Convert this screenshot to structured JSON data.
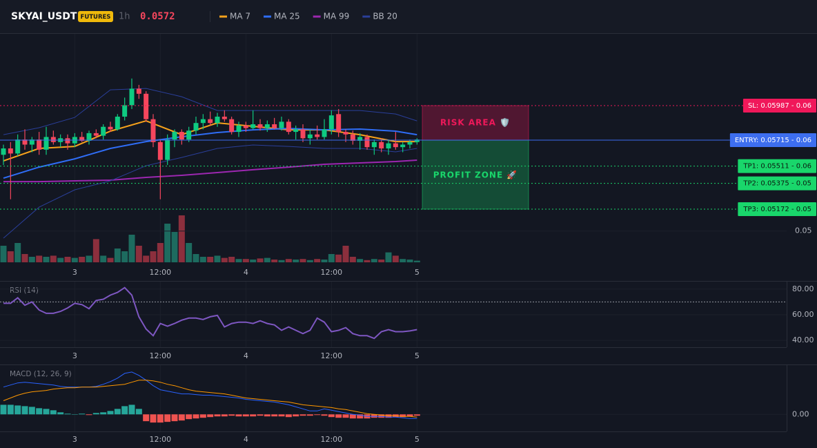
{
  "header": {
    "symbol": "SKYAI_USDT",
    "badge": "FUTURES",
    "interval": "1h",
    "last_price": "0.0572"
  },
  "chart_data": [
    {
      "type": "candlestick",
      "open": [
        0.056,
        0.0565,
        0.0561,
        0.0572,
        0.0568,
        0.0572,
        0.0564,
        0.0574,
        0.057,
        0.0573,
        0.0569,
        0.0574,
        0.0571,
        0.0577,
        0.0575,
        0.0582,
        0.058,
        0.059,
        0.0599,
        0.0612,
        0.0608,
        0.0588,
        0.057,
        0.0556,
        0.0572,
        0.0578,
        0.0572,
        0.0579,
        0.0585,
        0.0588,
        0.0585,
        0.059,
        0.0588,
        0.0578,
        0.0583,
        0.0581,
        0.0584,
        0.0581,
        0.0584,
        0.0581,
        0.0586,
        0.0578,
        0.058,
        0.0573,
        0.0576,
        0.0574,
        0.058,
        0.0592,
        0.0578,
        0.0576,
        0.0571,
        0.0574,
        0.0566,
        0.057,
        0.0565,
        0.0569,
        0.0566,
        0.0568,
        0.057
      ],
      "high": [
        0.0568,
        0.057,
        0.0576,
        0.058,
        0.0574,
        0.0578,
        0.0582,
        0.0579,
        0.0576,
        0.0576,
        0.0577,
        0.0578,
        0.0579,
        0.058,
        0.0584,
        0.0586,
        0.0592,
        0.0605,
        0.062,
        0.0615,
        0.061,
        0.0592,
        0.0572,
        0.0576,
        0.058,
        0.058,
        0.0582,
        0.059,
        0.0592,
        0.0594,
        0.0593,
        0.0595,
        0.059,
        0.0586,
        0.0586,
        0.0595,
        0.0588,
        0.0587,
        0.0589,
        0.059,
        0.0588,
        0.0583,
        0.0584,
        0.058,
        0.0583,
        0.0588,
        0.0595,
        0.0596,
        0.058,
        0.0579,
        0.0577,
        0.0576,
        0.0572,
        0.0573,
        0.0572,
        0.0578,
        0.057,
        0.0572,
        0.0573
      ],
      "low": [
        0.0552,
        0.0525,
        0.0559,
        0.0564,
        0.0562,
        0.056,
        0.056,
        0.0568,
        0.0566,
        0.0564,
        0.0566,
        0.057,
        0.0568,
        0.0573,
        0.0572,
        0.0578,
        0.0579,
        0.0587,
        0.0596,
        0.0604,
        0.0586,
        0.0566,
        0.0525,
        0.0552,
        0.0566,
        0.0568,
        0.057,
        0.0576,
        0.058,
        0.0583,
        0.0582,
        0.0586,
        0.0576,
        0.0574,
        0.0578,
        0.058,
        0.0579,
        0.0578,
        0.058,
        0.0579,
        0.0576,
        0.0572,
        0.057,
        0.0568,
        0.0572,
        0.0572,
        0.0576,
        0.0574,
        0.057,
        0.0568,
        0.0564,
        0.0564,
        0.056,
        0.0562,
        0.056,
        0.0564,
        0.0562,
        0.0565,
        0.0568
      ],
      "close": [
        0.0565,
        0.0561,
        0.0572,
        0.0568,
        0.0572,
        0.0564,
        0.0574,
        0.057,
        0.0573,
        0.0569,
        0.0574,
        0.0571,
        0.0577,
        0.0575,
        0.0582,
        0.058,
        0.059,
        0.0599,
        0.0612,
        0.0608,
        0.0588,
        0.057,
        0.0556,
        0.0572,
        0.0578,
        0.0572,
        0.0579,
        0.0585,
        0.0588,
        0.0585,
        0.059,
        0.0588,
        0.0578,
        0.0583,
        0.0581,
        0.0584,
        0.0581,
        0.0584,
        0.0581,
        0.0586,
        0.0578,
        0.058,
        0.0573,
        0.0576,
        0.0574,
        0.058,
        0.0591,
        0.0578,
        0.0576,
        0.0571,
        0.0574,
        0.0566,
        0.057,
        0.0565,
        0.0569,
        0.0566,
        0.0568,
        0.057,
        0.0572
      ],
      "up_color": "#0ecb81",
      "down_color": "#f6465d",
      "series": [
        {
          "name": "MA 7",
          "color": "#f7a21b",
          "x": [
            0,
            5,
            10,
            15,
            20,
            25,
            30,
            35,
            40,
            45,
            50,
            55,
            58
          ],
          "values": [
            0.05552,
            0.0565,
            0.05666,
            0.05786,
            0.05867,
            0.05758,
            0.05851,
            0.05824,
            0.05796,
            0.05796,
            0.05758,
            0.05704,
            0.05704
          ]
        },
        {
          "name": "MA 25",
          "color": "#2f6df6",
          "x": [
            0,
            5,
            10,
            15,
            20,
            25,
            30,
            35,
            40,
            45,
            50,
            55,
            58
          ],
          "values": [
            0.05416,
            0.05503,
            0.05568,
            0.0565,
            0.05704,
            0.05742,
            0.05775,
            0.05796,
            0.05807,
            0.05796,
            0.05802,
            0.05786,
            0.05758
          ]
        },
        {
          "name": "MA 99",
          "color": "#9c27b0",
          "x": [
            0,
            5,
            10,
            15,
            20,
            25,
            30,
            35,
            40,
            45,
            50,
            55,
            58
          ],
          "values": [
            0.05389,
            0.05389,
            0.05395,
            0.054,
            0.05422,
            0.05438,
            0.0546,
            0.05482,
            0.05503,
            0.05525,
            0.05536,
            0.05547,
            0.05558
          ]
        },
        {
          "name": "BB 20",
          "color": "#2a3f9a",
          "x": [
            0,
            5,
            10,
            15,
            20,
            25,
            30,
            35,
            40,
            45,
            50,
            55,
            58
          ],
          "upper": [
            0.05758,
            0.05813,
            0.05894,
            0.06111,
            0.06122,
            0.06057,
            0.05948,
            0.05948,
            0.05948,
            0.05948,
            0.05948,
            0.05921,
            0.05867
          ],
          "lower": [
            0.04944,
            0.05188,
            0.05324,
            0.05395,
            0.05514,
            0.05579,
            0.0565,
            0.05677,
            0.05666,
            0.0565,
            0.0565,
            0.05623,
            0.0565
          ]
        }
      ],
      "ylim": [
        0.04754,
        0.06557
      ],
      "yticks": [
        0.05
      ],
      "xticks": [
        {
          "value": 10,
          "label": "3"
        },
        {
          "value": 22,
          "label": "12:00"
        },
        {
          "value": 34,
          "label": "4"
        },
        {
          "value": 46,
          "label": "12:00"
        },
        {
          "value": 58,
          "label": "5"
        }
      ],
      "levels": [
        {
          "value": 0.05987,
          "label": "SL: 0.05987 - 0.06",
          "color": "#f0185a",
          "style": "dotted"
        },
        {
          "value": 0.05715,
          "label": "ENTRY: 0.05715 - 0.06",
          "color": "#3d6ef0",
          "style": "solid"
        },
        {
          "value": 0.05511,
          "label": "TP1: 0.05511 - 0.06",
          "color": "#19d66b",
          "style": "dotted"
        },
        {
          "value": 0.05375,
          "label": "TP2: 0.05375 - 0.05",
          "color": "#19d66b",
          "style": "dotted"
        },
        {
          "value": 0.05172,
          "label": "TP3: 0.05172 - 0.05",
          "color": "#19d66b",
          "style": "dotted"
        }
      ],
      "zones": [
        {
          "label": "RISK AREA 🛡️",
          "color": "#f0185a"
        },
        {
          "label": "PROFIT ZONE 🚀",
          "color": "#19d66b"
        }
      ]
    },
    {
      "type": "bar",
      "values": [
        30,
        20,
        35,
        15,
        10,
        12,
        10,
        12,
        8,
        10,
        8,
        10,
        12,
        42,
        12,
        8,
        25,
        20,
        50,
        30,
        12,
        20,
        35,
        70,
        55,
        85,
        35,
        15,
        10,
        10,
        12,
        8,
        10,
        6,
        6,
        5,
        7,
        8,
        5,
        4,
        6,
        5,
        6,
        4,
        6,
        5,
        15,
        14,
        30,
        10,
        6,
        4,
        6,
        5,
        18,
        12,
        6,
        5,
        3
      ],
      "up_color": "#1d6b5f",
      "down_color": "#8c2f3d",
      "ylim": [
        0,
        100
      ]
    },
    {
      "type": "line",
      "title": "RSI (14)",
      "color": "#7e57c2",
      "values": [
        68.9,
        68.9,
        73.2,
        67.4,
        70,
        63.7,
        61.1,
        61.1,
        62.6,
        65.3,
        68.9,
        67.9,
        64.7,
        71.1,
        72.1,
        75.3,
        77.4,
        81.1,
        75.3,
        58.4,
        48.9,
        43.7,
        53.2,
        51.1,
        53.2,
        55.8,
        57.4,
        57.4,
        56.3,
        58.4,
        59.5,
        50.5,
        53.2,
        54.2,
        54.2,
        53.2,
        55.3,
        53.2,
        52.1,
        47.9,
        50.5,
        47.9,
        45.3,
        47.9,
        57.4,
        54.2,
        46.8,
        47.9,
        50,
        45.3,
        43.7,
        43.7,
        41.6,
        46.8,
        48.4,
        46.8,
        46.8,
        47.4,
        48.4
      ],
      "ylim": [
        34.7,
        85.8
      ],
      "yticks": [
        {
          "value": 80,
          "label": "80.00"
        },
        {
          "value": 60,
          "label": "60.00"
        },
        {
          "value": 40,
          "label": "40.00"
        }
      ],
      "overbought": 70
    },
    {
      "type": "macd",
      "title": "MACD (12, 26, 9)",
      "series": [
        {
          "name": "MACD",
          "color": "#2962ff",
          "values": [
            0.0004,
            0.00043,
            0.00046,
            0.00047,
            0.00046,
            0.00045,
            0.00044,
            0.00043,
            0.00041,
            0.0004,
            0.0004,
            0.0004,
            0.0004,
            0.00041,
            0.00044,
            0.00048,
            0.00053,
            0.0006,
            0.00062,
            0.00057,
            0.0005,
            0.00042,
            0.00036,
            0.00034,
            0.00032,
            0.0003,
            0.0003,
            0.00029,
            0.00028,
            0.00028,
            0.00027,
            0.00026,
            0.00025,
            0.00024,
            0.00022,
            0.00021,
            0.0002,
            0.00019,
            0.00018,
            0.00016,
            0.00014,
            0.00011,
            8e-05,
            5e-05,
            5e-05,
            8e-05,
            6e-05,
            4e-05,
            2e-05,
            0,
            -1e-05,
            -3e-05,
            -3e-05,
            -3e-05,
            -4e-05,
            -4e-05,
            -5e-05,
            -6e-05,
            -6e-05
          ]
        },
        {
          "name": "Signal",
          "color": "#ff9800",
          "values": [
            0.0002,
            0.00024,
            0.00028,
            0.00031,
            0.00033,
            0.00034,
            0.00035,
            0.00037,
            0.00038,
            0.00039,
            0.00039,
            0.0004,
            0.0004,
            0.0004,
            0.00041,
            0.00042,
            0.00043,
            0.00044,
            0.00047,
            0.0005,
            0.0005,
            0.00049,
            0.00047,
            0.00044,
            0.00042,
            0.00039,
            0.00036,
            0.00034,
            0.00033,
            0.00032,
            0.00031,
            0.0003,
            0.00028,
            0.00026,
            0.00024,
            0.00023,
            0.00022,
            0.00021,
            0.0002,
            0.00019,
            0.00018,
            0.00016,
            0.00014,
            0.00013,
            0.00012,
            0.00011,
            0.0001,
            8e-05,
            7e-05,
            5e-05,
            3e-05,
            1e-05,
            0,
            -1e-05,
            -2e-05,
            -2e-05,
            -3e-05,
            -3e-05,
            -4e-05
          ]
        }
      ],
      "histogram": [
        0.00014,
        0.00014,
        0.00013,
        0.00012,
        0.00011,
        9e-05,
        8e-05,
        6e-05,
        3e-05,
        1e-05,
        0,
        1e-05,
        -1e-05,
        2e-05,
        3e-05,
        5e-05,
        8e-05,
        0.00012,
        0.00014,
        8e-05,
        -0.0001,
        -0.00012,
        -0.00012,
        -0.00011,
        -0.0001,
        -9e-05,
        -7e-05,
        -6e-05,
        -5e-05,
        -4e-05,
        -3e-05,
        -3e-05,
        -2e-05,
        -3e-05,
        -3e-05,
        -3e-05,
        -2e-05,
        -3e-05,
        -3e-05,
        -3e-05,
        -4e-05,
        -3e-05,
        -2e-05,
        -2e-05,
        -1e-05,
        -2e-05,
        -4e-05,
        -5e-05,
        -5e-05,
        -6e-05,
        -6e-05,
        -6e-05,
        -5e-05,
        -5e-05,
        -5e-05,
        -4e-05,
        -4e-05,
        -3e-05,
        -2e-05
      ],
      "up_color": "#26a69a",
      "down_color": "#ef5350",
      "ylim": [
        -0.00025,
        0.00072
      ],
      "yticks": [
        {
          "value": 0,
          "label": "0.00"
        }
      ]
    }
  ]
}
